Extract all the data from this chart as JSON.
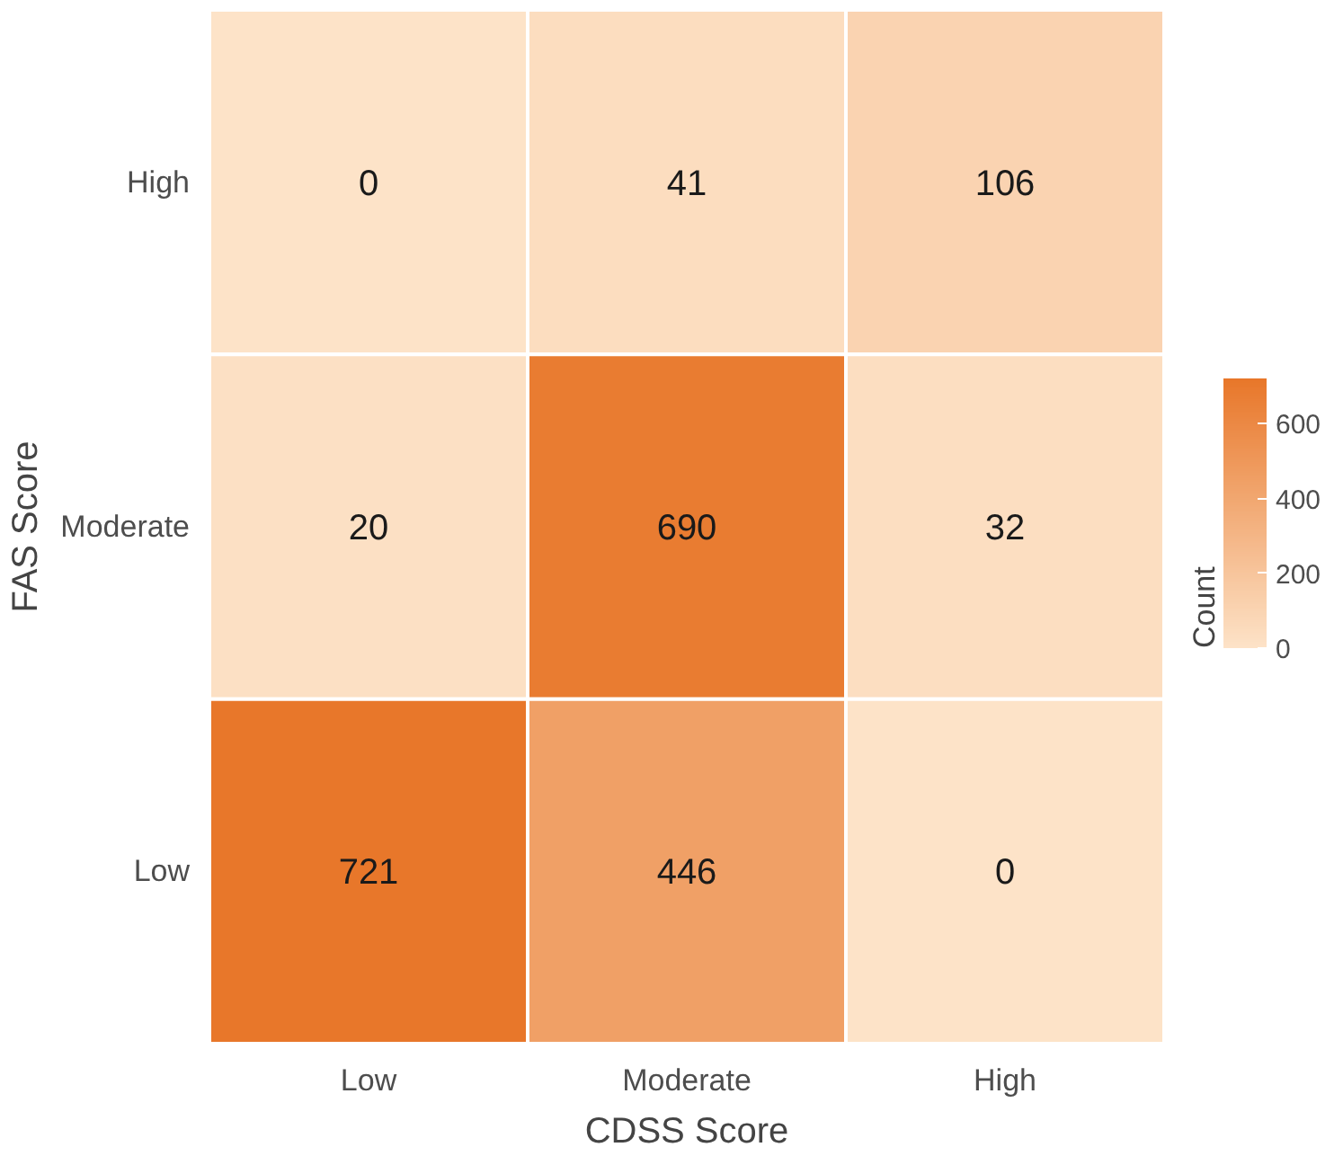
{
  "chart_data": {
    "type": "heatmap",
    "xlabel": "CDSS Score",
    "ylabel": "FAS Score",
    "legend_title": "Count",
    "categories": [
      "Low",
      "Moderate",
      "High"
    ],
    "y_categories": [
      "High",
      "Moderate",
      "Low"
    ],
    "cells": [
      [
        0,
        41,
        106
      ],
      [
        20,
        690,
        32
      ],
      [
        721,
        446,
        0
      ]
    ],
    "data_labels": true,
    "colors": [
      "#fde3c8",
      "#e8772a"
    ],
    "clim": [
      0,
      721
    ],
    "cticks": [
      0,
      200,
      400,
      600
    ]
  }
}
